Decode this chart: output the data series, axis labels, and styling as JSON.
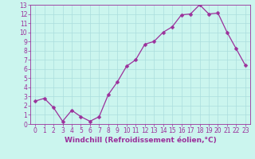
{
  "x": [
    0,
    1,
    2,
    3,
    4,
    5,
    6,
    7,
    8,
    9,
    10,
    11,
    12,
    13,
    14,
    15,
    16,
    17,
    18,
    19,
    20,
    21,
    22,
    23
  ],
  "y": [
    2.5,
    2.8,
    1.8,
    0.3,
    1.5,
    0.8,
    0.3,
    0.8,
    3.2,
    4.6,
    6.3,
    7.0,
    8.7,
    9.0,
    10.0,
    10.6,
    11.9,
    12.0,
    13.0,
    12.0,
    12.1,
    10.0,
    8.2,
    6.4
  ],
  "line_color": "#9B309B",
  "marker_color": "#9B309B",
  "bg_color": "#cbf5ee",
  "grid_color": "#aadddd",
  "xlabel": "Windchill (Refroidissement éolien,°C)",
  "xlabel_color": "#9B309B",
  "tick_color": "#9B309B",
  "xlim": [
    -0.5,
    23.5
  ],
  "ylim": [
    0,
    13
  ],
  "yticks": [
    0,
    1,
    2,
    3,
    4,
    5,
    6,
    7,
    8,
    9,
    10,
    11,
    12,
    13
  ],
  "xticks": [
    0,
    1,
    2,
    3,
    4,
    5,
    6,
    7,
    8,
    9,
    10,
    11,
    12,
    13,
    14,
    15,
    16,
    17,
    18,
    19,
    20,
    21,
    22,
    23
  ],
  "tick_fontsize": 5.5,
  "xlabel_fontsize": 6.5,
  "marker_size": 2.5,
  "linewidth": 0.9
}
